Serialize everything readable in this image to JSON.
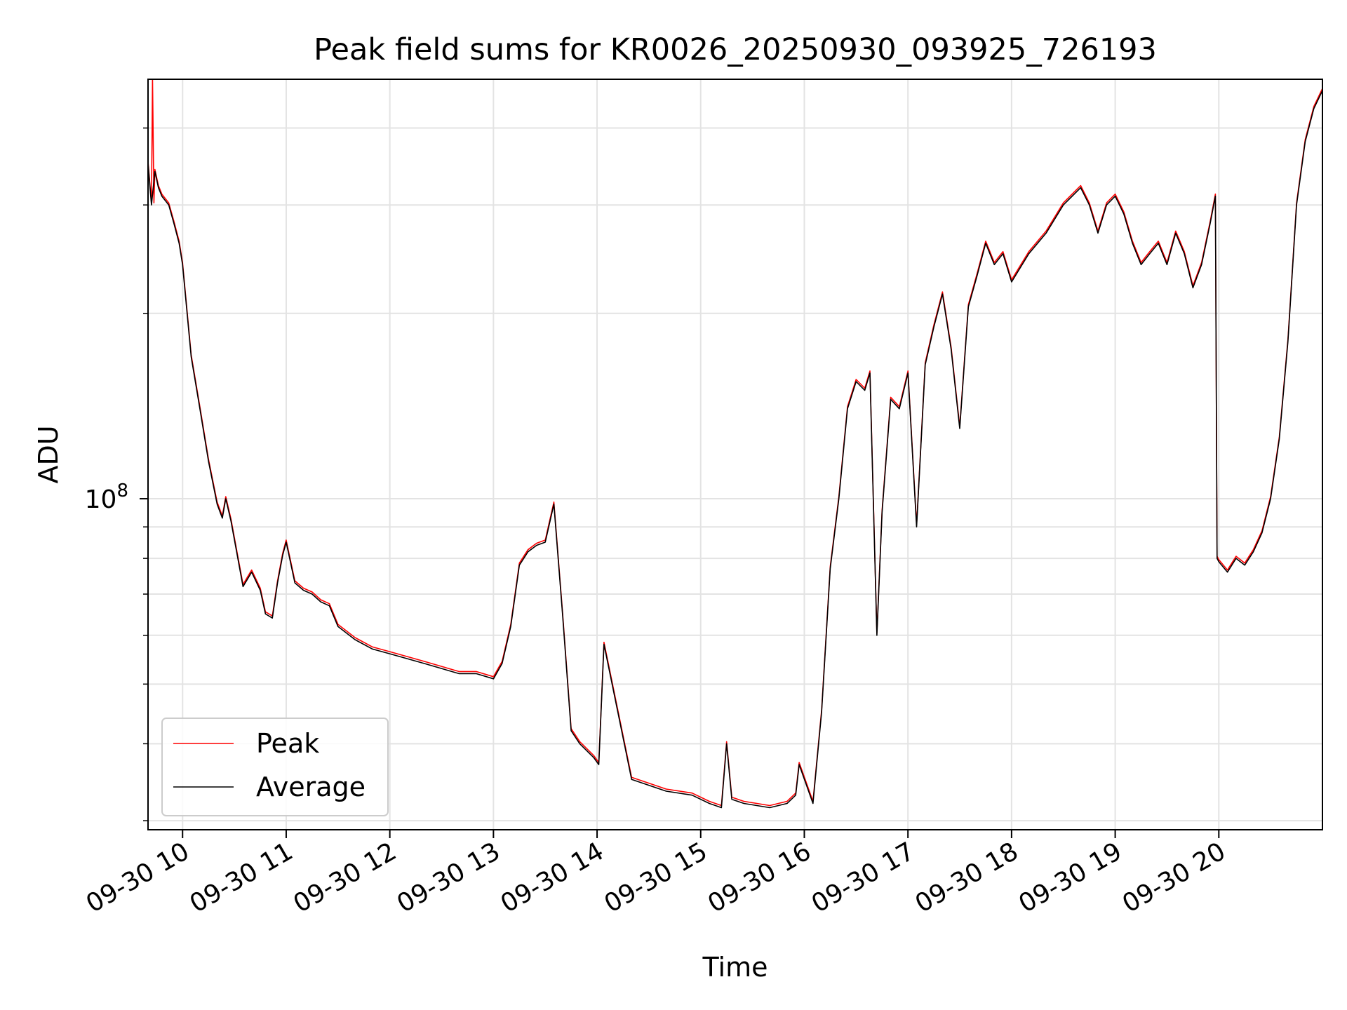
{
  "chart_data": {
    "type": "line",
    "title": "Peak field sums for KR0026_20250930_093925_726193",
    "xlabel": "Time",
    "ylabel": "ADU",
    "x_ticks": [
      "09-30 10",
      "09-30 11",
      "09-30 12",
      "09-30 13",
      "09-30 14",
      "09-30 15",
      "09-30 16",
      "09-30 17",
      "09-30 18",
      "09-30 19",
      "09-30 20"
    ],
    "y_ticks": [
      {
        "value": 100000000,
        "label": "10",
        "exponent": "8"
      }
    ],
    "y_scale": "log",
    "xlim": [
      "2025-09-30 09:40",
      "2025-09-30 21:00"
    ],
    "ylim": [
      29000000,
      480000000
    ],
    "grid": true,
    "legend_position": "lower-left",
    "series": [
      {
        "name": "Peak",
        "color": "#ff0000"
      },
      {
        "name": "Average",
        "color": "#000000"
      }
    ],
    "x": [
      "09:40",
      "09:42",
      "09:44",
      "09:46",
      "09:48",
      "09:52",
      "09:55",
      "09:58",
      "10:00",
      "10:05",
      "10:10",
      "10:15",
      "10:20",
      "10:23",
      "10:25",
      "10:28",
      "10:32",
      "10:35",
      "10:40",
      "10:45",
      "10:48",
      "10:52",
      "10:55",
      "10:58",
      "11:00",
      "11:05",
      "11:10",
      "11:15",
      "11:20",
      "11:25",
      "11:30",
      "11:40",
      "11:50",
      "12:00",
      "12:20",
      "12:40",
      "12:50",
      "13:00",
      "13:05",
      "13:10",
      "13:15",
      "13:20",
      "13:25",
      "13:30",
      "13:35",
      "13:40",
      "13:45",
      "13:50",
      "13:58",
      "14:01",
      "14:04",
      "14:20",
      "14:40",
      "14:55",
      "15:05",
      "15:12",
      "15:15",
      "15:18",
      "15:25",
      "15:40",
      "15:50",
      "15:55",
      "15:57",
      "16:05",
      "16:10",
      "16:15",
      "16:20",
      "16:25",
      "16:30",
      "16:35",
      "16:38",
      "16:42",
      "16:45",
      "16:50",
      "16:55",
      "17:00",
      "17:05",
      "17:10",
      "17:15",
      "17:20",
      "17:25",
      "17:30",
      "17:35",
      "17:40",
      "17:45",
      "17:50",
      "17:55",
      "18:00",
      "18:10",
      "18:20",
      "18:30",
      "18:40",
      "18:45",
      "18:50",
      "18:55",
      "19:00",
      "19:05",
      "19:10",
      "19:15",
      "19:20",
      "19:25",
      "19:30",
      "19:35",
      "19:40",
      "19:45",
      "19:50",
      "19:55",
      "19:58",
      "19:59",
      "20:00",
      "20:05",
      "20:10",
      "20:15",
      "20:20",
      "20:25",
      "20:30",
      "20:35",
      "20:40",
      "20:45",
      "20:50",
      "20:55",
      "21:00"
    ],
    "values": [
      350000000,
      300000000,
      340000000,
      320000000,
      310000000,
      300000000,
      280000000,
      260000000,
      240000000,
      170000000,
      140000000,
      115000000,
      98000000,
      93000000,
      100000000,
      92000000,
      80000000,
      72000000,
      76000000,
      71000000,
      65000000,
      64000000,
      73000000,
      81000000,
      85000000,
      73000000,
      71000000,
      70000000,
      68000000,
      67000000,
      62000000,
      59000000,
      57000000,
      56000000,
      54000000,
      52000000,
      52000000,
      51000000,
      54000000,
      62000000,
      78000000,
      82000000,
      84000000,
      85000000,
      98000000,
      65000000,
      42000000,
      40000000,
      38000000,
      37000000,
      58000000,
      35000000,
      33500000,
      33000000,
      32000000,
      31500000,
      40000000,
      32500000,
      32000000,
      31500000,
      32000000,
      33000000,
      37000000,
      32000000,
      45000000,
      77000000,
      100000000,
      140000000,
      155000000,
      150000000,
      160000000,
      60000000,
      95000000,
      145000000,
      140000000,
      160000000,
      90000000,
      165000000,
      190000000,
      215000000,
      175000000,
      130000000,
      205000000,
      230000000,
      260000000,
      240000000,
      250000000,
      225000000,
      250000000,
      270000000,
      300000000,
      320000000,
      300000000,
      270000000,
      300000000,
      310000000,
      290000000,
      260000000,
      240000000,
      250000000,
      260000000,
      240000000,
      270000000,
      250000000,
      220000000,
      240000000,
      280000000,
      310000000,
      80000000,
      79000000,
      76000000,
      80000000,
      78000000,
      82000000,
      88000000,
      100000000,
      125000000,
      180000000,
      300000000,
      380000000,
      430000000,
      460000000
    ],
    "spikes": [
      {
        "x": "09:43",
        "value": 480000000,
        "series": "Peak"
      }
    ]
  }
}
